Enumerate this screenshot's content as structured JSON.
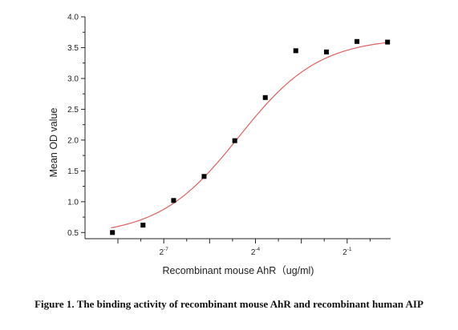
{
  "chart_data": {
    "type": "scatter",
    "xlabel": "Recombinant mouse AhR（ug/ml)",
    "ylabel": "Mean OD value",
    "x_scale": "log2",
    "x_tick_labels": [
      {
        "base": "2",
        "exp": "-7",
        "value": 0.0078125
      },
      {
        "base": "2",
        "exp": "-4",
        "value": 0.0625
      },
      {
        "base": "2",
        "exp": "-1",
        "value": 0.5
      }
    ],
    "y_ticks": [
      "0.5",
      "1.0",
      "1.5",
      "2.0",
      "2.5",
      "3.0",
      "3.5",
      "4.0"
    ],
    "ylim": [
      0.4,
      4.0
    ],
    "xlim": [
      0.00131,
      1.34
    ],
    "grid": false,
    "series": [
      {
        "x": [
          0.00244,
          0.00488,
          0.00977,
          0.0195,
          0.0391,
          0.0781,
          0.156,
          0.3125,
          0.625,
          1.25
        ],
        "y": [
          0.5,
          0.62,
          1.02,
          1.41,
          1.99,
          2.69,
          3.45,
          3.43,
          3.6,
          3.59
        ]
      }
    ],
    "fit_curve": {
      "model": "4PL",
      "bottom": 0.45,
      "top": 3.66,
      "midpoint": 0.043,
      "hill_slope": 1.1,
      "color": "#e06060"
    },
    "marker_color": "#000000"
  },
  "caption": "Figure 1. The binding activity of recombinant mouse AhR and recombinant human AIP"
}
